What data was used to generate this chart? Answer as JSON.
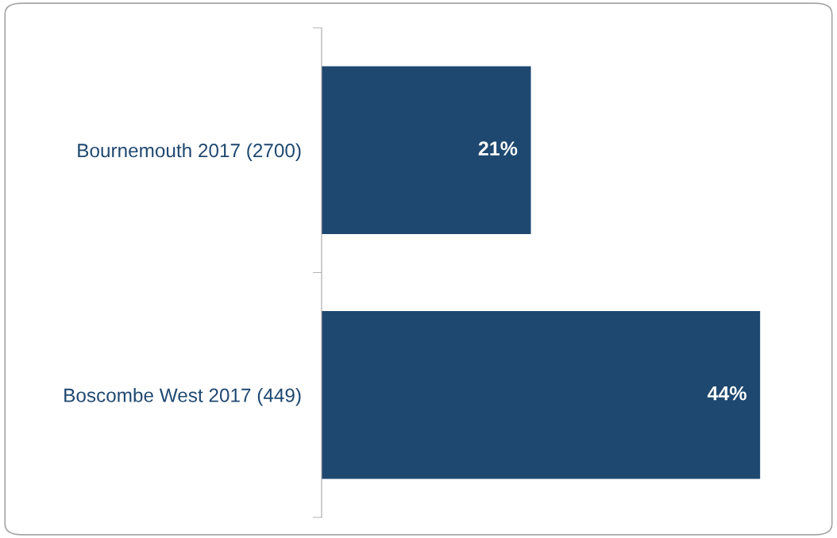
{
  "chart_data": {
    "type": "bar",
    "orientation": "horizontal",
    "categories": [
      "Bournemouth 2017 (2700)",
      "Boscombe West 2017 (449)"
    ],
    "values": [
      21,
      44
    ],
    "value_labels": [
      "21%",
      "44%"
    ],
    "color": "#1f4870",
    "grid": false,
    "tick_labels": "y"
  }
}
